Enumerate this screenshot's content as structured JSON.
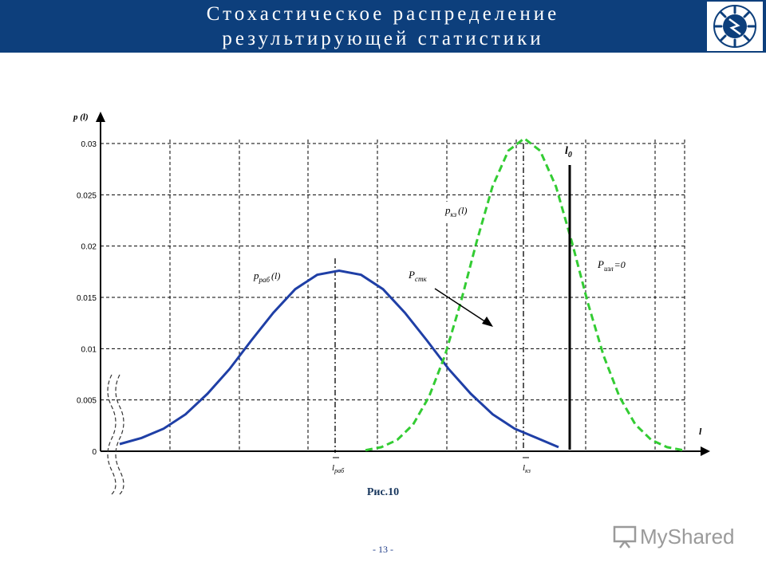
{
  "header": {
    "title_line1": "Стохастическое распределение",
    "title_line2": "результирующей статистики"
  },
  "colors": {
    "header_bg": "#0d3f7c",
    "series_work": "#1f3fa6",
    "series_kz": "#33cc33",
    "threshold": "#000000"
  },
  "icons": {
    "logo": "power-company-logo-icon",
    "watermark": "presentation-board-icon"
  },
  "chart_data": {
    "type": "line",
    "ylabel": "p (l)",
    "xlabel": "l",
    "ylim": [
      0,
      0.03
    ],
    "yticks": [
      "0",
      "0.005",
      "0.01",
      "0.015",
      "0.02",
      "0.025",
      "0.03"
    ],
    "grid": true,
    "x_unlabeled": true,
    "series": [
      {
        "name": "p раб (l)",
        "style": "solid",
        "color": "#1f3fa6",
        "x": [
          0.0,
          0.05,
          0.1,
          0.15,
          0.2,
          0.25,
          0.3,
          0.35,
          0.4,
          0.45,
          0.5,
          0.55,
          0.6,
          0.65,
          0.7,
          0.75,
          0.8,
          0.85,
          0.9,
          0.95,
          1.0
        ],
        "y": [
          0.0007,
          0.0013,
          0.0022,
          0.0036,
          0.0056,
          0.008,
          0.0108,
          0.0135,
          0.0158,
          0.0172,
          0.0176,
          0.0172,
          0.0158,
          0.0135,
          0.0108,
          0.008,
          0.0056,
          0.0036,
          0.0022,
          0.0013,
          0.0004
        ]
      },
      {
        "name": "p кз (l)",
        "style": "dashed",
        "color": "#33cc33",
        "x": [
          0.0,
          0.05,
          0.1,
          0.15,
          0.2,
          0.25,
          0.3,
          0.35,
          0.4,
          0.45,
          0.5,
          0.55,
          0.6,
          0.65,
          0.7,
          0.75,
          0.8,
          0.85,
          0.9,
          0.95,
          1.0
        ],
        "y": [
          0.0001,
          0.0004,
          0.0011,
          0.0026,
          0.0053,
          0.0093,
          0.0145,
          0.0204,
          0.0258,
          0.0293,
          0.0305,
          0.0293,
          0.0258,
          0.0204,
          0.0145,
          0.0093,
          0.0053,
          0.0026,
          0.0011,
          0.0004,
          0.0001
        ]
      }
    ],
    "markers": [
      {
        "label_main": "l",
        "label_sub": "раб",
        "bar": true
      },
      {
        "label_main": "l",
        "label_sub": "кз",
        "bar": true
      }
    ],
    "threshold": {
      "label_main": "l",
      "label_sub": "0"
    },
    "annotations": {
      "work": {
        "main": "p",
        "sub": "раб",
        "tail": "(l)"
      },
      "kz": {
        "main": "p",
        "sub": "кз",
        "tail": "(l)"
      },
      "stk": {
        "main": "P",
        "sub": "стк"
      },
      "izl": {
        "main": "P",
        "sub": "изл",
        "tail": "=0"
      }
    }
  },
  "caption": "Рис.10",
  "page_number": "- 13 -",
  "watermark": {
    "text": "MyShared"
  }
}
